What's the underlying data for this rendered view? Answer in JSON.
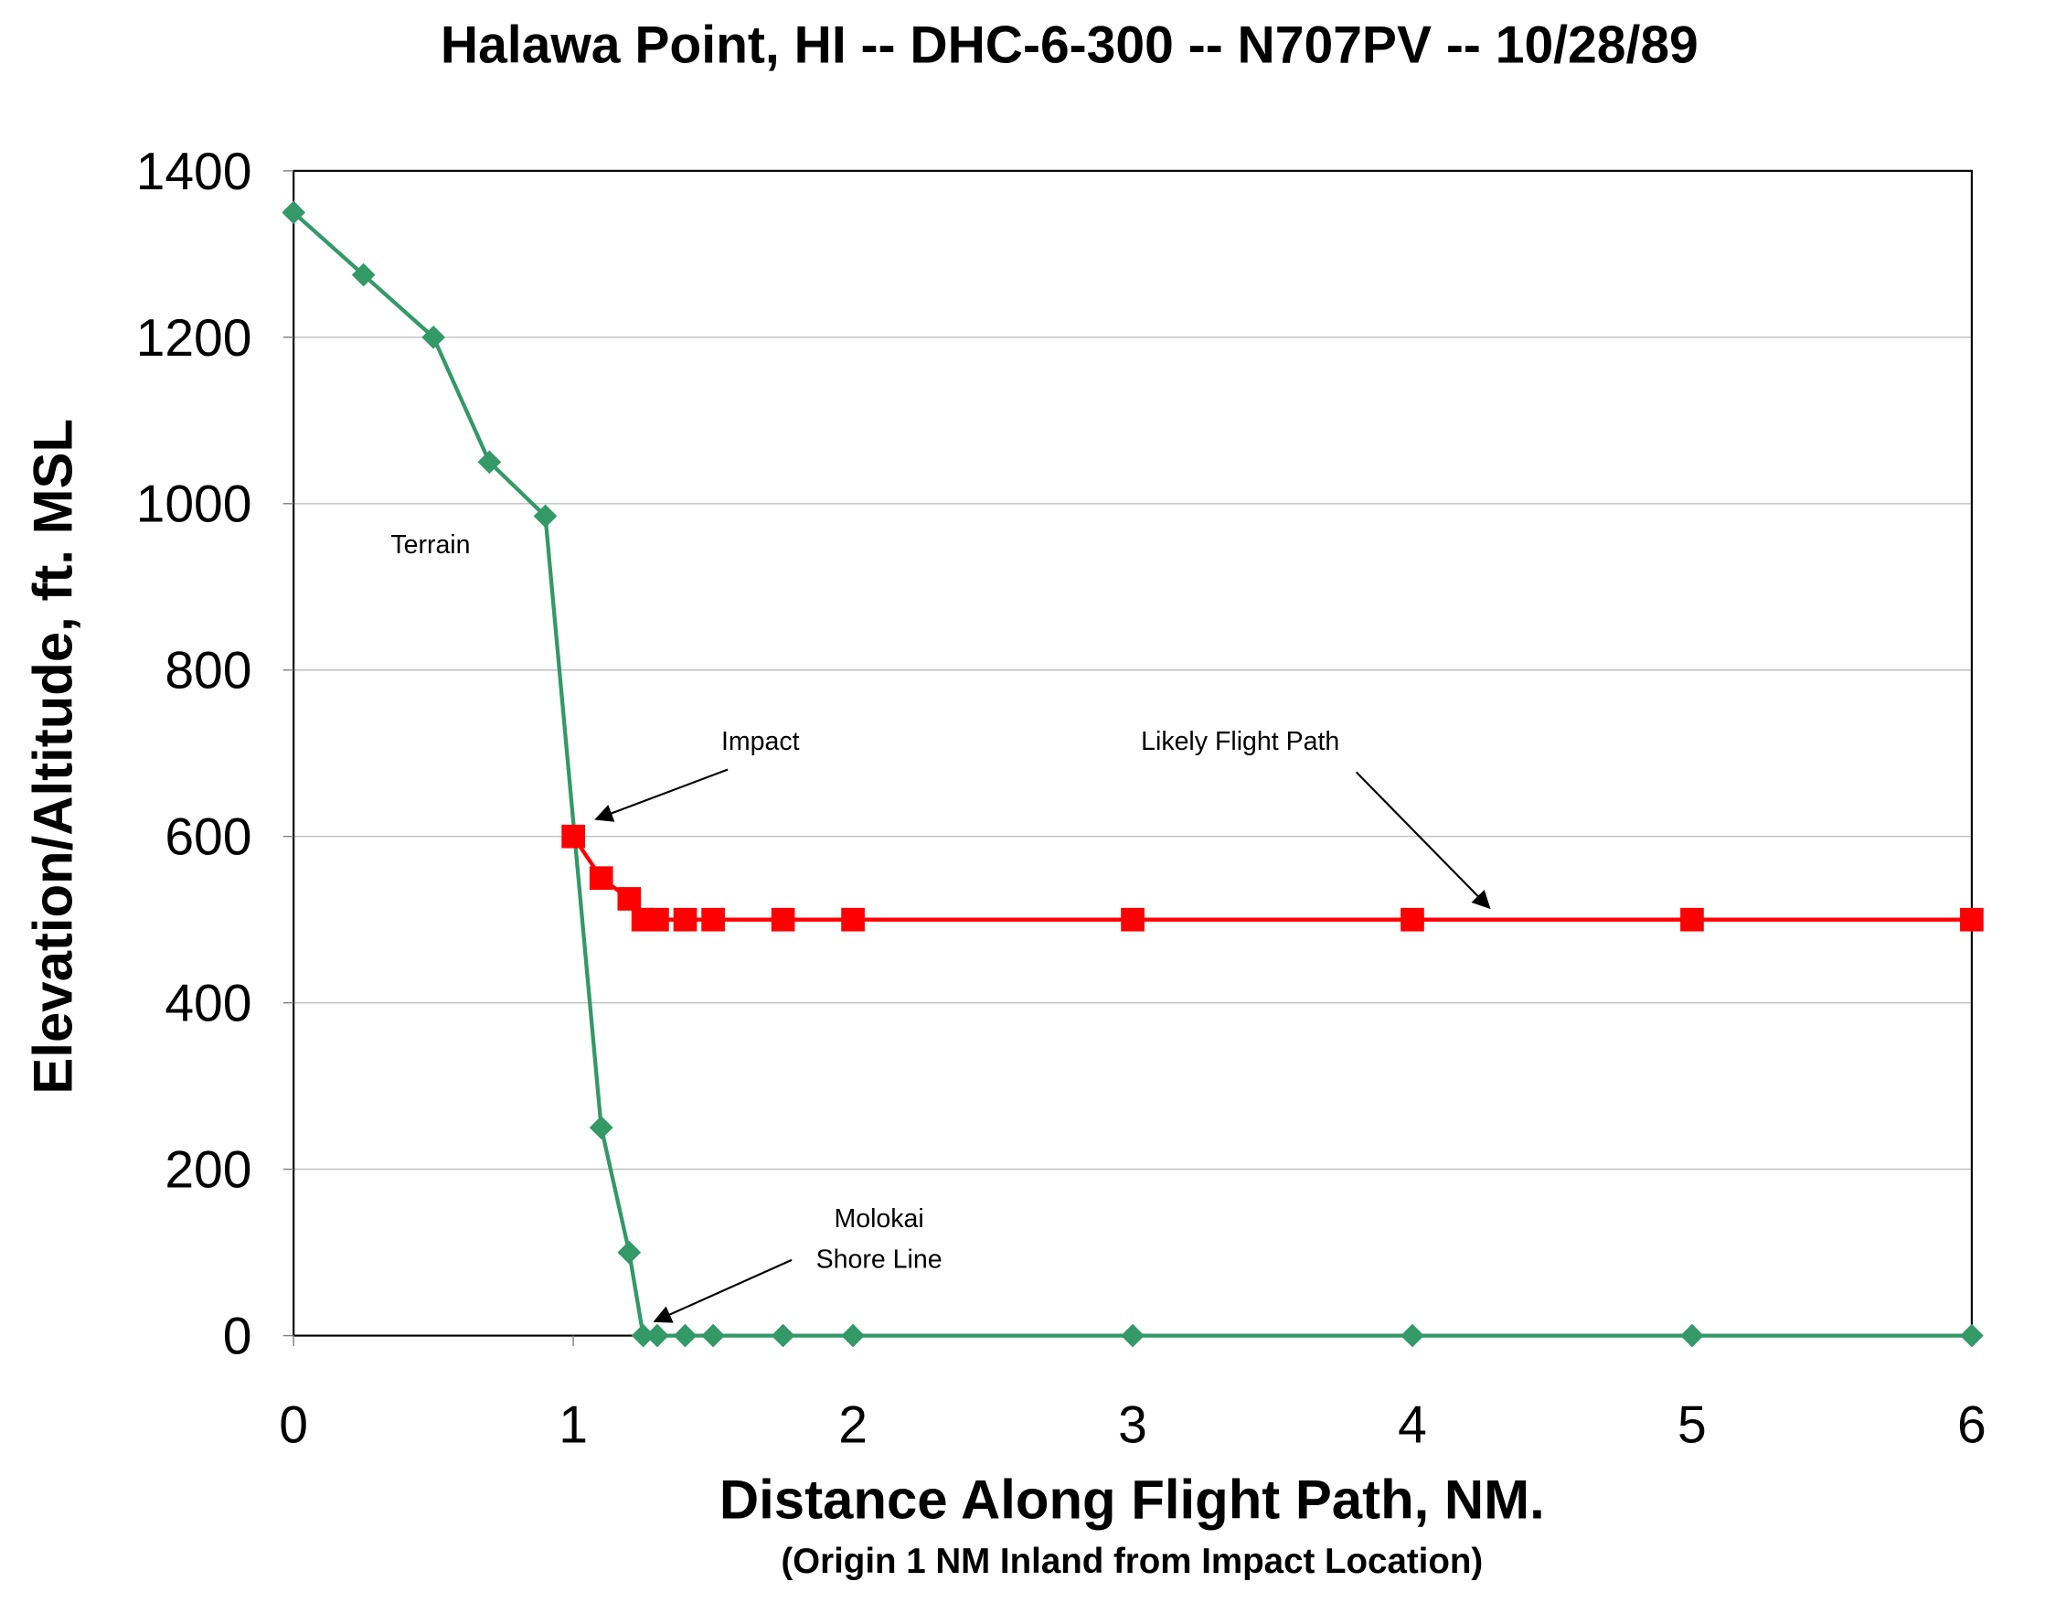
{
  "chart_data": {
    "type": "line",
    "title": "Halawa Point, HI -- DHC-6-300 -- N707PV -- 10/28/89",
    "xlabel": "Distance Along Flight Path, NM.",
    "xlabel_sub": "(Origin 1 NM Inland from Impact Location)",
    "ylabel": "Elevation/Altitude, ft. MSL",
    "xlim": [
      0,
      6
    ],
    "ylim": [
      0,
      1400
    ],
    "xticks": [
      "0",
      "1",
      "2",
      "3",
      "4",
      "5",
      "6"
    ],
    "yticks": [
      "0",
      "200",
      "400",
      "600",
      "800",
      "1000",
      "1200",
      "1400"
    ],
    "grid": "horizontal",
    "series": [
      {
        "key": "terrain",
        "color": "#339966",
        "marker": "diamond",
        "points": [
          [
            0,
            1350
          ],
          [
            0.25,
            1275
          ],
          [
            0.5,
            1200
          ],
          [
            0.7,
            1050
          ],
          [
            0.9,
            985
          ],
          [
            1.1,
            250
          ],
          [
            1.2,
            100
          ],
          [
            1.25,
            0
          ],
          [
            1.3,
            0
          ],
          [
            1.4,
            0
          ],
          [
            1.5,
            0
          ],
          [
            1.75,
            0
          ],
          [
            2,
            0
          ],
          [
            3,
            0
          ],
          [
            4,
            0
          ],
          [
            5,
            0
          ],
          [
            6,
            0
          ]
        ]
      },
      {
        "key": "flight_path",
        "color": "#ff0000",
        "marker": "square",
        "points": [
          [
            1,
            600
          ],
          [
            1.1,
            550
          ],
          [
            1.2,
            525
          ],
          [
            1.25,
            500
          ],
          [
            1.3,
            500
          ],
          [
            1.4,
            500
          ],
          [
            1.5,
            500
          ],
          [
            1.75,
            500
          ],
          [
            2,
            500
          ],
          [
            3,
            500
          ],
          [
            4,
            500
          ],
          [
            5,
            500
          ],
          [
            6,
            500
          ]
        ]
      }
    ],
    "annotations": {
      "terrain": "Terrain",
      "impact": "Impact",
      "flight_path": "Likely Flight Path",
      "shore_1": "Molokai",
      "shore_2": "Shore Line"
    }
  }
}
